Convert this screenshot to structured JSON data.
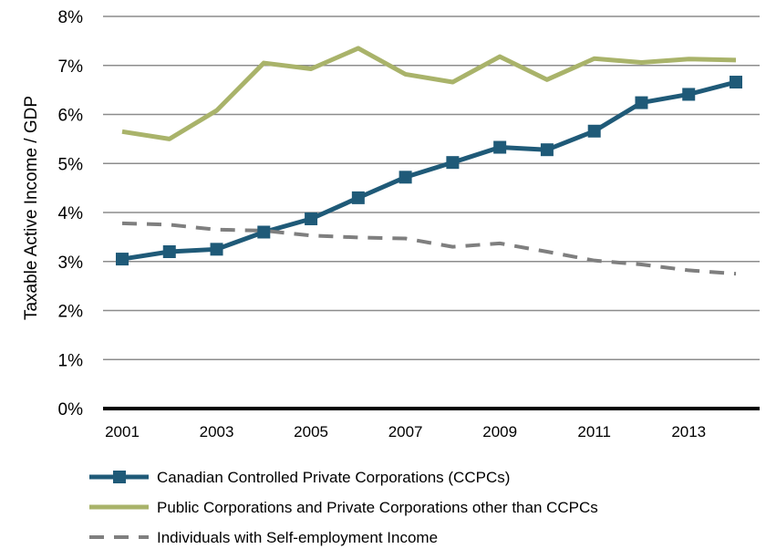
{
  "chart_data": {
    "type": "line",
    "ylabel": "Taxable Active Income / GDP",
    "xlabel": "",
    "x": [
      2001,
      2002,
      2003,
      2004,
      2005,
      2006,
      2007,
      2008,
      2009,
      2010,
      2011,
      2012,
      2013,
      2014
    ],
    "x_tick_labels": [
      "2001",
      "2003",
      "2005",
      "2007",
      "2009",
      "2011",
      "2013"
    ],
    "x_tick_values": [
      2001,
      2003,
      2005,
      2007,
      2009,
      2011,
      2013
    ],
    "y_tick_labels": [
      "0%",
      "1%",
      "2%",
      "3%",
      "4%",
      "5%",
      "6%",
      "7%",
      "8%"
    ],
    "ylim": [
      0,
      8
    ],
    "grid": true,
    "legend_position": "bottom",
    "series": [
      {
        "name": "Canadian Controlled Private Corporations (CCPCs)",
        "color": "#1f5a78",
        "style": "solid-markers",
        "values": [
          3.05,
          3.2,
          3.25,
          3.6,
          3.87,
          4.3,
          4.72,
          5.02,
          5.33,
          5.28,
          5.66,
          6.24,
          6.41,
          6.66
        ]
      },
      {
        "name": "Public Corporations and Private Corporations other than CCPCs",
        "color": "#a9b36a",
        "style": "solid",
        "values": [
          5.65,
          5.5,
          6.08,
          7.05,
          6.93,
          7.35,
          6.82,
          6.66,
          7.18,
          6.71,
          7.14,
          7.06,
          7.13,
          7.11
        ]
      },
      {
        "name": "Individuals with Self-employment Income",
        "color": "#7f7f7f",
        "style": "dashed",
        "values": [
          3.78,
          3.75,
          3.65,
          3.63,
          3.53,
          3.49,
          3.47,
          3.3,
          3.37,
          3.2,
          3.02,
          2.94,
          2.82,
          2.75
        ]
      }
    ]
  }
}
